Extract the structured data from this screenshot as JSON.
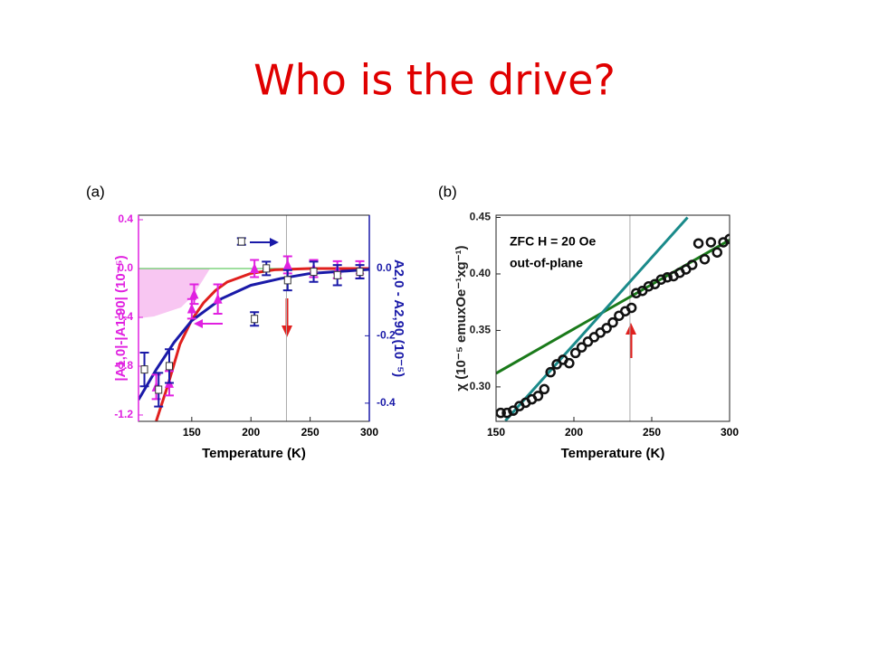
{
  "title": "Who is the drive?",
  "chart_data": [
    {
      "type": "scatter",
      "panel": "(a)",
      "xlabel": "Temperature (K)",
      "ylabel": "|A1,0|-|A1,90| (10⁻⁵)",
      "y2label": "A2,0 - A2,90 (10⁻⁵)",
      "ycolor": "#e020e0",
      "y2color": "#1a1aa8",
      "xlim": [
        105,
        300
      ],
      "xticks": [
        150,
        200,
        250,
        300
      ],
      "ylim": [
        -1.252,
        0.437
      ],
      "yticks": [
        0.4,
        {
          "value": 0,
          "label": "0.0"
        },
        -0.4,
        -0.8,
        -1.2
      ],
      "y2lim": [
        -0.454,
        0.158
      ],
      "y2ticks": [
        {
          "value": 0,
          "label": "0.0"
        },
        -0.2,
        -0.4
      ],
      "hline": 0,
      "hline_color": "#66cc66",
      "vline": 230,
      "series": [
        {
          "mode": "line",
          "color": "#e0201e",
          "x": [
            120,
            130,
            140,
            150,
            160,
            170,
            180,
            200,
            220,
            250,
            300
          ],
          "values": [
            -1.25,
            -0.95,
            -0.62,
            -0.42,
            -0.28,
            -0.18,
            -0.11,
            -0.04,
            -0.01,
            0,
            0
          ]
        },
        {
          "mode": "line",
          "axis": "y2",
          "color": "#1a1aa8",
          "x": [
            105,
            120,
            135,
            150,
            175,
            200,
            225,
            250,
            300
          ],
          "values": [
            -0.39,
            -0.3,
            -0.22,
            -0.155,
            -0.09,
            -0.05,
            -0.03,
            -0.015,
            -0.003
          ]
        },
        {
          "mode": "markers",
          "marker": "triangle",
          "color": "#e020e0",
          "x": [
            120,
            131,
            152,
            150,
            172,
            203,
            231,
            253,
            273,
            292
          ],
          "values": [
            -0.97,
            -0.94,
            -0.21,
            -0.33,
            -0.25,
            0,
            0.03,
            0,
            -0.01,
            -0.01
          ],
          "errors": [
            0.1,
            0.1,
            0.08,
            0.08,
            0.12,
            0.07,
            0.07,
            0.07,
            0.07,
            0.07
          ]
        },
        {
          "mode": "markers",
          "marker": "square",
          "axis": "y2",
          "color": "#1a1aa8",
          "x": [
            110,
            122,
            131,
            192,
            203,
            213,
            231,
            253,
            273,
            292
          ],
          "values": [
            -0.3,
            -0.36,
            -0.29,
            0.08,
            -0.15,
            0,
            -0.035,
            -0.01,
            -0.02,
            -0.01
          ],
          "errors": [
            0.05,
            0.05,
            0.05,
            0.01,
            0.02,
            0.02,
            0.03,
            0.03,
            0.03,
            0.02
          ]
        }
      ]
    },
    {
      "type": "scatter",
      "panel": "(b)",
      "xlabel": "Temperature (K)",
      "ylabel": "χ (10⁻⁵ emuxOe⁻¹xg⁻¹)",
      "annotations": [
        "ZFC H = 20 Oe",
        "out-of-plane"
      ],
      "xlim": [
        150,
        300
      ],
      "xticks": [
        150,
        200,
        250,
        300
      ],
      "ylim": [
        0.2695,
        0.452
      ],
      "yticks": [
        {
          "value": 0.3,
          "label": "0.30"
        },
        0.35,
        {
          "value": 0.4,
          "label": "0.40"
        },
        0.45
      ],
      "vline": 236,
      "series": [
        {
          "mode": "line",
          "color": "#1a7a1a",
          "x": [
            150,
            300
          ],
          "values": [
            0.312,
            0.43
          ]
        },
        {
          "mode": "line",
          "color": "#1a8a8a",
          "x": [
            156,
            273
          ],
          "values": [
            0.27,
            0.45
          ]
        },
        {
          "mode": "markers",
          "marker": "circle-open",
          "color": "#111111",
          "x": [
            153,
            157,
            161,
            165,
            169,
            173,
            177,
            181,
            185,
            189,
            193,
            197,
            201,
            205,
            209,
            213,
            217,
            221,
            225,
            229,
            233,
            237,
            240,
            244,
            248,
            252,
            256,
            260,
            264,
            268,
            272,
            276,
            280,
            284,
            288,
            292,
            296,
            300
          ],
          "values": [
            0.277,
            0.277,
            0.279,
            0.283,
            0.286,
            0.289,
            0.292,
            0.298,
            0.313,
            0.32,
            0.324,
            0.321,
            0.33,
            0.335,
            0.34,
            0.344,
            0.348,
            0.352,
            0.357,
            0.363,
            0.367,
            0.37,
            0.383,
            0.385,
            0.389,
            0.391,
            0.395,
            0.397,
            0.398,
            0.401,
            0.404,
            0.408,
            0.427,
            0.413,
            0.428,
            0.419,
            0.428,
            0.431
          ]
        }
      ]
    }
  ]
}
